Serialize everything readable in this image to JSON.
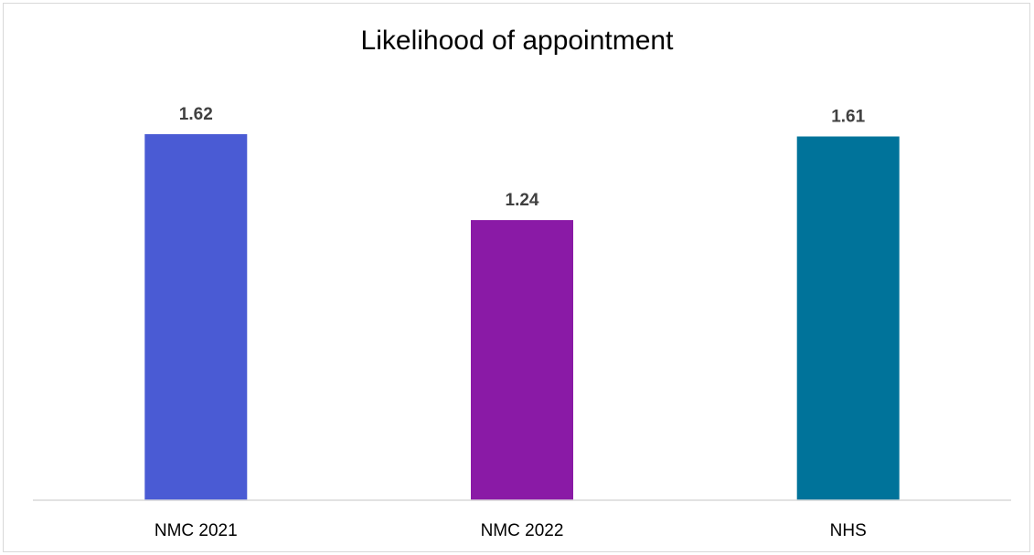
{
  "chart_data": {
    "type": "bar",
    "title": "Likelihood of appointment",
    "categories": [
      "NMC 2021",
      "NMC 2022",
      "NHS"
    ],
    "values": [
      1.62,
      1.24,
      1.61
    ],
    "data_labels": [
      "1.62",
      "1.24",
      "1.61"
    ],
    "colors": [
      "#4a5bd4",
      "#8a1aa6",
      "#00739a"
    ],
    "xlabel": "",
    "ylabel": "",
    "ylim": [
      0,
      1.62
    ],
    "grid": false,
    "legend": "none"
  }
}
